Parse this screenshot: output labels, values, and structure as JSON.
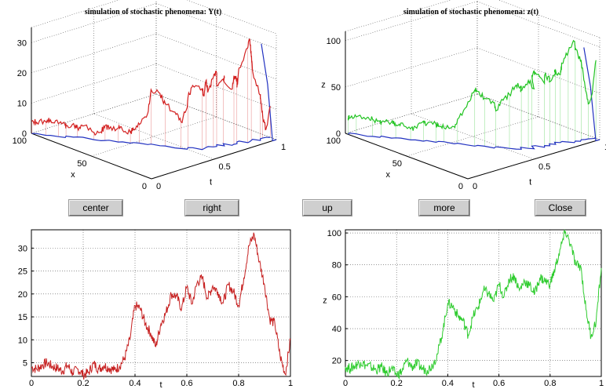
{
  "plots3d": [
    {
      "title": "simulation of stochastic phenomena: Y(t)",
      "color": "#d32020",
      "z_ticks": [
        "0",
        "10",
        "20",
        "30"
      ],
      "x_ticks": [
        "0",
        "50",
        "100"
      ],
      "t_ticks": [
        "0",
        "0.5",
        "1"
      ],
      "x_label": "x",
      "t_label": "t",
      "z_label": ""
    },
    {
      "title": "simulation of stochastic phenomena: z(t)",
      "color": "#22c422",
      "z_ticks": [
        "0",
        "50",
        "100"
      ],
      "x_ticks": [
        "0",
        "50",
        "100"
      ],
      "t_ticks": [
        "0",
        "0.5",
        "1"
      ],
      "x_label": "x",
      "t_label": "t",
      "z_label": "z"
    }
  ],
  "buttons": {
    "center": "center",
    "right": "right",
    "up": "up",
    "more": "more",
    "close": "Close"
  },
  "chart_data": [
    {
      "type": "line",
      "title": "",
      "xlabel": "t",
      "ylabel": "",
      "xlim": [
        0,
        1
      ],
      "ylim": [
        2,
        34
      ],
      "x_ticks": [
        "0",
        "0.2",
        "0.4",
        "0.6",
        "0.8",
        "1"
      ],
      "y_ticks": [
        "5",
        "10",
        "15",
        "20",
        "25",
        "30"
      ],
      "grid": true,
      "color": "#c62020",
      "series": [
        {
          "x": [
            0,
            0.02,
            0.04,
            0.06,
            0.08,
            0.1,
            0.12,
            0.14,
            0.16,
            0.18,
            0.2,
            0.22,
            0.24,
            0.26,
            0.28,
            0.3,
            0.32,
            0.34,
            0.36,
            0.38,
            0.4,
            0.42,
            0.44,
            0.46,
            0.48,
            0.5,
            0.52,
            0.54,
            0.56,
            0.58,
            0.6,
            0.62,
            0.64,
            0.66,
            0.68,
            0.7,
            0.72,
            0.74,
            0.76,
            0.78,
            0.8,
            0.82,
            0.84,
            0.86,
            0.88,
            0.9,
            0.92,
            0.94,
            0.96,
            0.98,
            1.0
          ],
          "values": [
            4,
            3.6,
            4.4,
            5.0,
            4.2,
            3.8,
            3.2,
            4.4,
            2.8,
            3.6,
            2.4,
            2.8,
            4.8,
            3.6,
            4.4,
            3.8,
            3.4,
            4.2,
            6.0,
            10,
            17.5,
            16.8,
            13.5,
            11.5,
            8.5,
            13.5,
            16.0,
            20.0,
            19.5,
            16.8,
            21.5,
            17.8,
            22.5,
            23.5,
            19.0,
            21.8,
            20.5,
            18.0,
            22.0,
            20.5,
            17.5,
            23.5,
            30.5,
            33.0,
            27.0,
            22.0,
            14.5,
            13.5,
            6.5,
            2.5,
            10.0
          ]
        }
      ]
    },
    {
      "type": "line",
      "title": "",
      "xlabel": "t",
      "ylabel": "z",
      "xlim": [
        0,
        1
      ],
      "ylim": [
        10,
        102
      ],
      "x_ticks": [
        "0",
        "0.2",
        "0.4",
        "0.6",
        "0.8",
        "1"
      ],
      "y_ticks": [
        "20",
        "40",
        "60",
        "80",
        "100"
      ],
      "grid": true,
      "color": "#30cc30",
      "series": [
        {
          "x": [
            0,
            0.02,
            0.04,
            0.06,
            0.08,
            0.1,
            0.12,
            0.14,
            0.16,
            0.18,
            0.2,
            0.22,
            0.24,
            0.26,
            0.28,
            0.3,
            0.32,
            0.34,
            0.36,
            0.38,
            0.4,
            0.42,
            0.44,
            0.46,
            0.48,
            0.5,
            0.52,
            0.54,
            0.56,
            0.58,
            0.6,
            0.62,
            0.64,
            0.66,
            0.68,
            0.7,
            0.72,
            0.74,
            0.76,
            0.78,
            0.8,
            0.82,
            0.84,
            0.86,
            0.88,
            0.9,
            0.92,
            0.94,
            0.96,
            0.98,
            1.0
          ],
          "values": [
            16,
            15,
            17,
            19,
            17,
            16,
            14,
            16,
            12,
            15,
            11,
            13,
            20,
            16,
            18,
            15,
            14,
            17,
            24,
            38,
            56,
            54,
            48,
            45,
            36,
            48,
            54,
            64,
            62,
            57,
            68,
            60,
            71,
            73,
            64,
            70,
            67,
            62,
            72,
            70,
            68,
            78,
            90,
            101,
            93,
            80,
            79,
            52,
            35,
            45,
            78
          ]
        }
      ]
    }
  ]
}
